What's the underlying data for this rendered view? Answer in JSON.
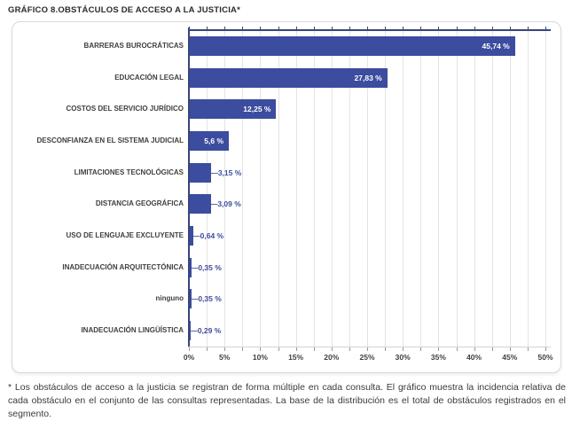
{
  "title": "GRÁFICO 8.OBSTÁCULOS DE ACCESO A LA JUSTICIA*",
  "footnote": "* Los obstáculos de acceso a la justicia se registran de forma múltiple en cada consulta. El gráfico muestra la incidencia relativa de cada obstáculo en el conjunto de las consultas representadas. La base de la distribución es el total de obstáculos registrados en el segmento.",
  "colors": {
    "bar": "#3c4c9e",
    "axis": "#39457e",
    "grid": "#e3e3e3",
    "tick": "#9a9a9a",
    "label_inside": "#ffffff",
    "label_outside": "#3c4c9e",
    "category": "#3f3f3f",
    "axis_label": "#3f3f3f"
  },
  "chart_data": {
    "type": "bar",
    "orientation": "horizontal",
    "title": "GRÁFICO 8.OBSTÁCULOS DE ACCESO A LA JUSTICIA*",
    "categories": [
      "BARRERAS BUROCRÁTICAS",
      "EDUCACIÓN LEGAL",
      "COSTOS DEL SERVICIO JURÍDICO",
      "DESCONFIANZA EN EL SISTEMA JUDICIAL",
      "LIMITACIONES TECNOLÓGICAS",
      "DISTANCIA GEOGRÁFICA",
      "USO DE LENGUAJE EXCLUYENTE",
      "INADECUACIÓN ARQUITECTÓNICA",
      "ninguno",
      "INADECUACIÓN LINGÜÍSTICA"
    ],
    "values": [
      45.74,
      27.83,
      12.25,
      5.6,
      3.15,
      3.09,
      0.64,
      0.35,
      0.35,
      0.29
    ],
    "value_labels": [
      "45,74 %",
      "27,83 %",
      "12,25 %",
      "5,6 %",
      "3,15 %",
      "3,09 %",
      "0,64 %",
      "0,35 %",
      "0,35 %",
      "0,29 %"
    ],
    "xlabel": "",
    "ylabel": "",
    "xlim": [
      0,
      50
    ],
    "x_tick_step": 5,
    "x_minor_tick_step": 2.5,
    "x_tick_labels": [
      "0%",
      "5%",
      "10%",
      "15%",
      "20%",
      "25%",
      "30%",
      "35%",
      "40%",
      "45%",
      "50%"
    ],
    "grid": true,
    "legend": false
  }
}
